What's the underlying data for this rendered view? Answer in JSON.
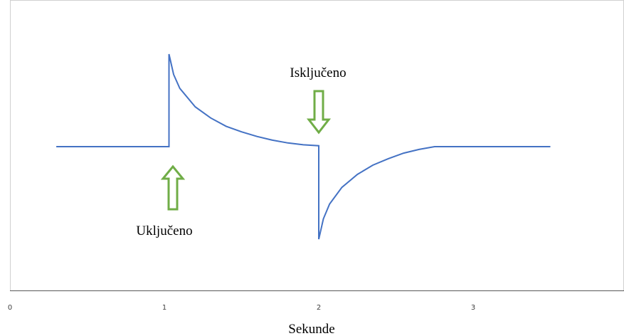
{
  "chart_data": {
    "type": "line",
    "title": "",
    "xlabel": "Sekunde",
    "ylabel": "",
    "xlim": [
      0,
      4
    ],
    "ylim": [
      -1,
      1
    ],
    "x_ticks": [
      0,
      1,
      2,
      3
    ],
    "x_tick_labels": [
      "0",
      "1",
      "2",
      "3"
    ],
    "y_ticks": [],
    "grid": false,
    "series": [
      {
        "values": [
          [
            0.3,
            0
          ],
          [
            1.03,
            0
          ],
          [
            1.03,
            1.0
          ],
          [
            1.06,
            0.78
          ],
          [
            1.1,
            0.63
          ],
          [
            1.2,
            0.43
          ],
          [
            1.3,
            0.31
          ],
          [
            1.4,
            0.22
          ],
          [
            1.5,
            0.16
          ],
          [
            1.6,
            0.11
          ],
          [
            1.7,
            0.07
          ],
          [
            1.8,
            0.04
          ],
          [
            1.9,
            0.02
          ],
          [
            2.0,
            0.01
          ],
          [
            2.0,
            -1.0
          ],
          [
            2.03,
            -0.78
          ],
          [
            2.07,
            -0.62
          ],
          [
            2.15,
            -0.44
          ],
          [
            2.25,
            -0.3
          ],
          [
            2.35,
            -0.2
          ],
          [
            2.45,
            -0.13
          ],
          [
            2.55,
            -0.07
          ],
          [
            2.65,
            -0.03
          ],
          [
            2.75,
            0
          ],
          [
            3.5,
            0
          ]
        ],
        "color": "#4472c4"
      }
    ],
    "annotations": [
      {
        "text": "Uključeno",
        "arrow": "up",
        "x": 1.03,
        "arrow_color": "#70ad47"
      },
      {
        "text": "Isključeno",
        "arrow": "down",
        "x": 2.0,
        "arrow_color": "#70ad47"
      }
    ]
  }
}
